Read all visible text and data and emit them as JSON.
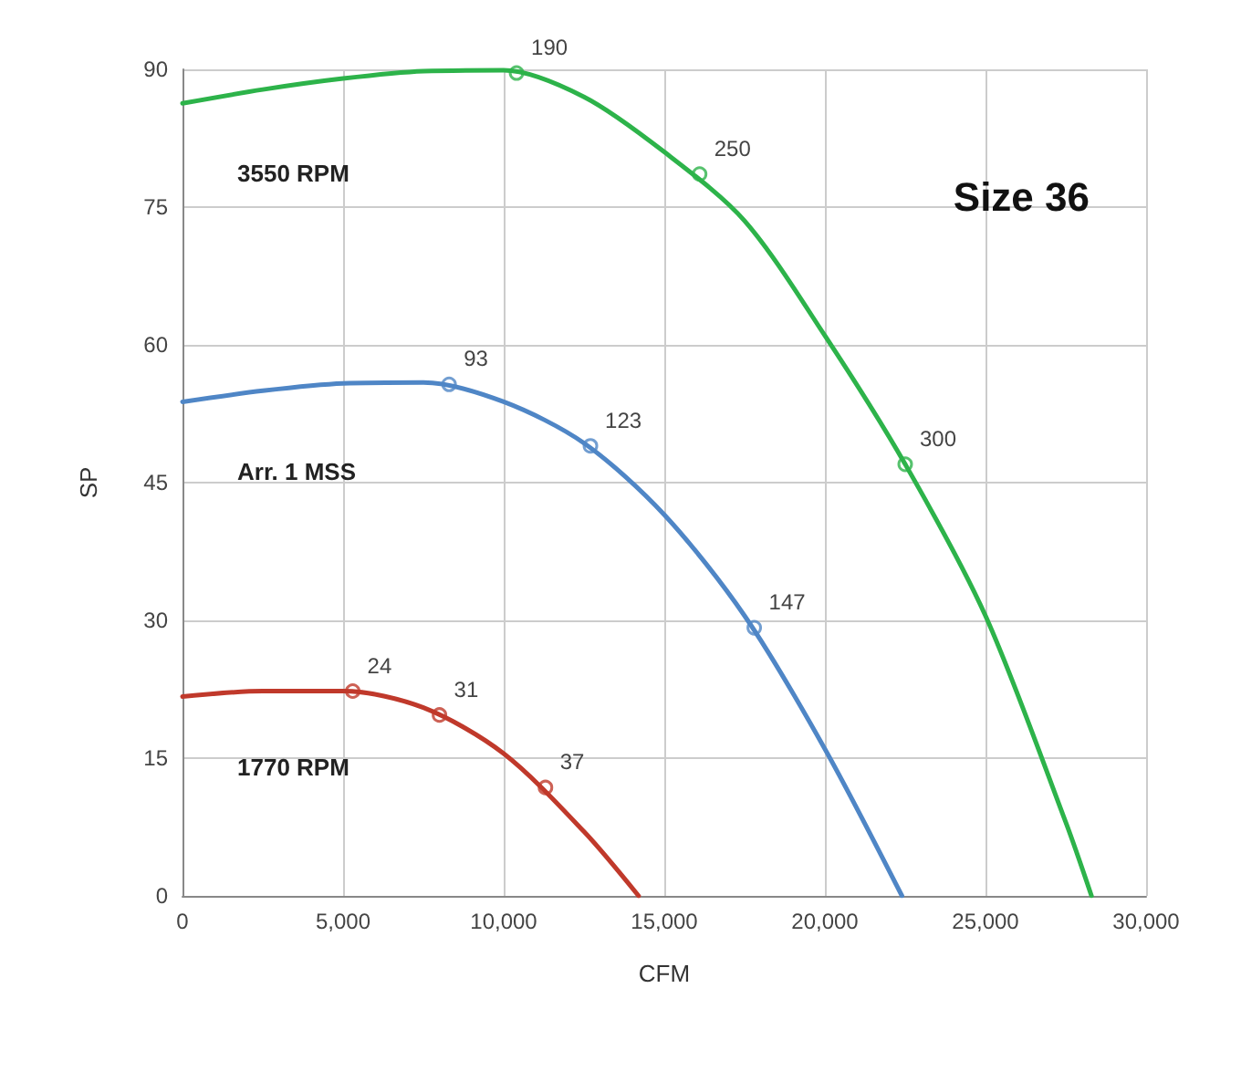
{
  "chart_data": {
    "type": "line",
    "xlabel": "CFM",
    "ylabel": "SP",
    "xlim": [
      0,
      30000
    ],
    "ylim": [
      0,
      90
    ],
    "xticks": [
      0,
      {
        "value": 5000,
        "label": "5,000"
      },
      {
        "value": 10000,
        "label": "10,000"
      },
      {
        "value": 15000,
        "label": "15,000"
      },
      {
        "value": 20000,
        "label": "20,000"
      },
      {
        "value": 25000,
        "label": "25,000"
      },
      {
        "value": 30000,
        "label": "30,000"
      }
    ],
    "yticks": [
      0,
      15,
      30,
      45,
      60,
      75,
      90
    ],
    "grid": true,
    "annotations": [
      "Size 36",
      {
        "text": "190",
        "x": 10400,
        "y": 89.6
      },
      {
        "text": "250",
        "x": 16100,
        "y": 78.6
      },
      {
        "text": "300",
        "x": 22500,
        "y": 47
      },
      {
        "text": "93",
        "x": 8300,
        "y": 55.7
      },
      {
        "text": "123",
        "x": 12700,
        "y": 49
      },
      {
        "text": "147",
        "x": 17800,
        "y": 29.2
      },
      {
        "text": "24",
        "x": 5300,
        "y": 22.3
      },
      {
        "text": "31",
        "x": 8000,
        "y": 19.7
      },
      {
        "text": "37",
        "x": 11300,
        "y": 11.8
      }
    ],
    "series": [
      {
        "name": "3550 RPM",
        "marker": "none",
        "color": "#2db34a",
        "x": [
          0,
          2500,
          5000,
          7500,
          10000,
          12500,
          15000,
          17500,
          20000,
          22500,
          25000,
          27500,
          28300
        ],
        "values": [
          86.3,
          87.8,
          89,
          89.8,
          89.9,
          87,
          81,
          73.5,
          61,
          47,
          30.5,
          8,
          0
        ]
      },
      {
        "name": "Arr. 1 MSS",
        "marker": "none",
        "color": "#4f86c6",
        "x": [
          0,
          2500,
          5000,
          7500,
          10000,
          12500,
          15000,
          17500,
          20000,
          22400
        ],
        "values": [
          53.8,
          55,
          55.8,
          55.9,
          53.8,
          49.3,
          41.5,
          30.5,
          16,
          0
        ]
      },
      {
        "name": "1770 RPM",
        "marker": "none",
        "color": "#c0392b",
        "x": [
          0,
          2500,
          5000,
          7500,
          10000,
          12500,
          14200
        ],
        "values": [
          21.7,
          22.3,
          22.3,
          20.5,
          15.5,
          7,
          0
        ]
      },
      {
        "type": "scatter",
        "marker": "circle",
        "color": "#2db34a",
        "x": [
          10400,
          16100,
          22500
        ],
        "values": [
          89.6,
          78.6,
          47
        ]
      },
      {
        "type": "scatter",
        "marker": "circle",
        "color": "#4f86c6",
        "x": [
          8300,
          12700,
          17800
        ],
        "values": [
          55.7,
          49,
          29.2
        ]
      },
      {
        "type": "scatter",
        "marker": "circle",
        "color": "#c0392b",
        "x": [
          5300,
          8000,
          11300
        ],
        "values": [
          22.3,
          19.7,
          11.8
        ]
      }
    ]
  }
}
